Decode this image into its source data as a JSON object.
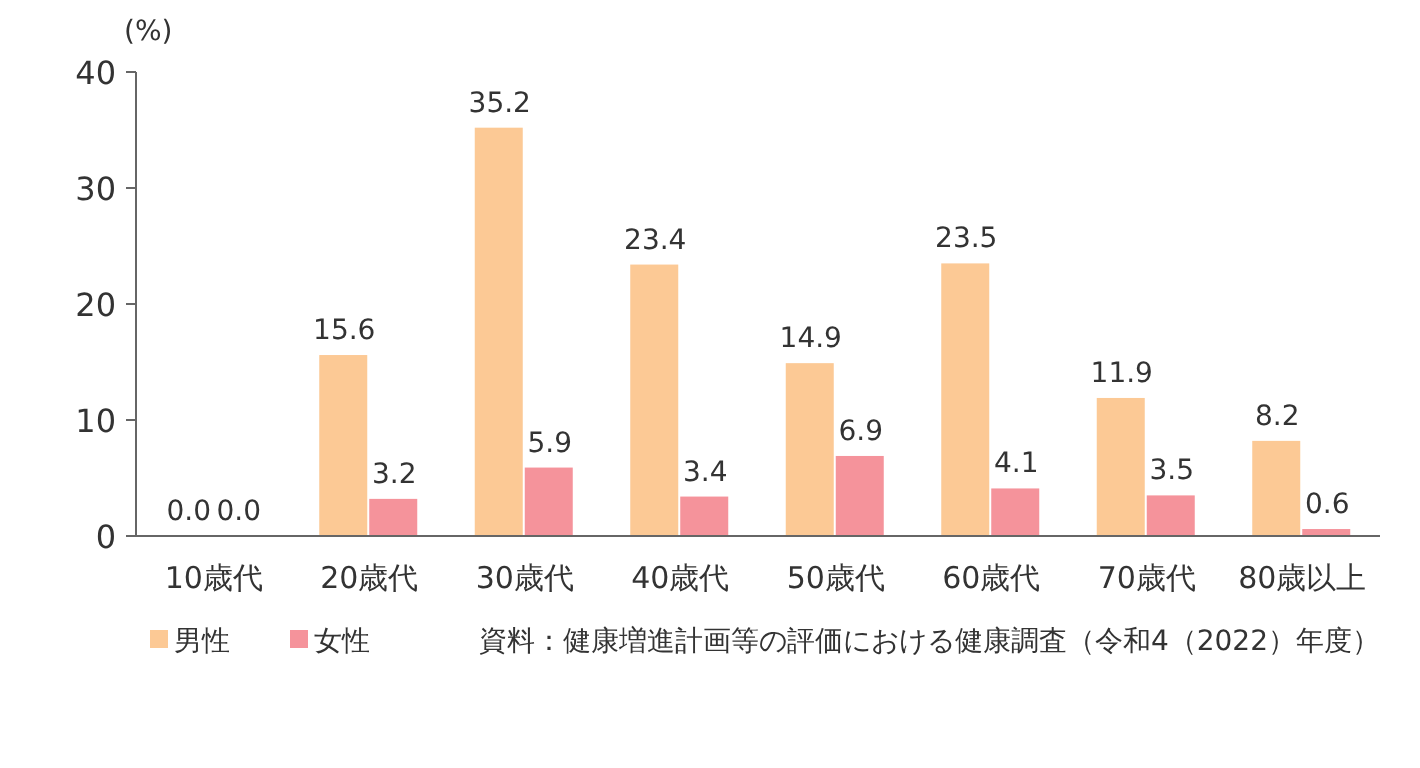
{
  "chart_data": {
    "type": "bar",
    "ylabel": "(%)",
    "categories": [
      "10歳代",
      "20歳代",
      "30歳代",
      "40歳代",
      "50歳代",
      "60歳代",
      "70歳代",
      "80歳以上"
    ],
    "series": [
      {
        "name": "男性",
        "color": "#fcc995",
        "values": [
          0.0,
          15.6,
          35.2,
          23.4,
          14.9,
          23.5,
          11.9,
          8.2
        ],
        "value_labels": [
          "0.0",
          "15.6",
          "35.2",
          "23.4",
          "14.9",
          "23.5",
          "11.9",
          "8.2"
        ]
      },
      {
        "name": "女性",
        "color": "#f5939b",
        "values": [
          0.0,
          3.2,
          5.9,
          3.4,
          6.9,
          4.1,
          3.5,
          0.6
        ],
        "value_labels": [
          "0.0",
          "3.2",
          "5.9",
          "3.4",
          "6.9",
          "4.1",
          "3.5",
          "0.6"
        ]
      }
    ],
    "ylim": [
      0,
      40
    ],
    "yticks": [
      0,
      10,
      20,
      30,
      40
    ],
    "grid": false,
    "legend": "bottom left",
    "annotations": [
      "資料：健康増進計画等の評価における健康調査（令和4（2022）年度）"
    ]
  }
}
